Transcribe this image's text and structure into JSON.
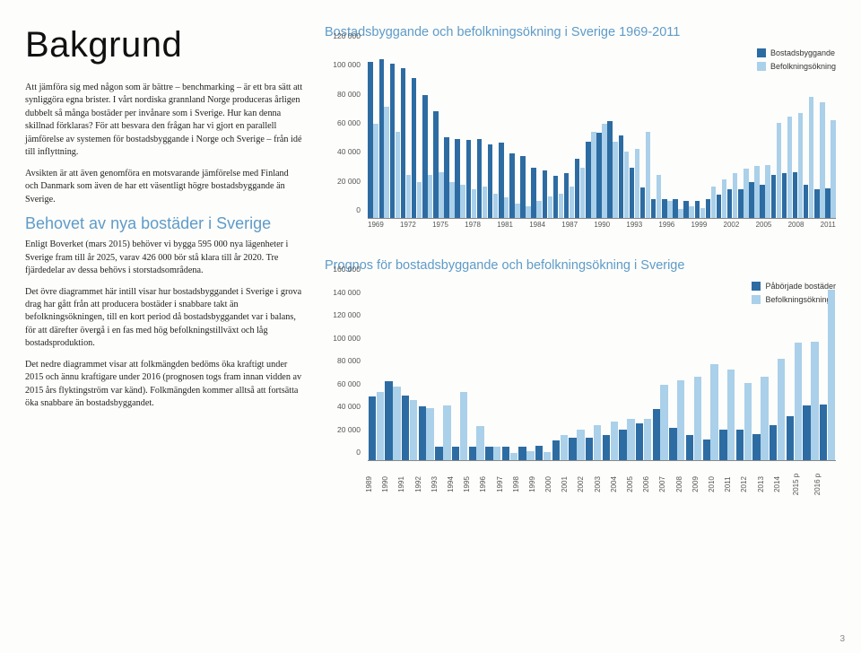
{
  "page_number": "3",
  "left": {
    "title": "Bakgrund",
    "p1": "Att jämföra sig med någon som är bättre – benchmarking – är ett bra sätt att synliggöra egna brister. I vårt nordiska grannland Norge produceras årligen dubbelt så många bostäder per invånare som i Sverige. Hur kan denna skillnad förklaras? För att besvara den frågan har vi gjort en parallell jämförelse av systemen för bostadsbyggande i Norge och Sverige – från idé till inflyttning.",
    "p2": "Avsikten är att även genomföra en motsvarande jämförelse med Finland och Danmark som även de har ett väsentligt högre bostadsbyggande än Sverige.",
    "subhead": "Behovet av nya bostäder i Sverige",
    "p3": "Enligt Boverket (mars 2015) behöver vi bygga 595 000 nya lägenheter i Sverige fram till år 2025, varav 426 000 bör stå klara till år 2020. Tre fjärdedelar av dessa behövs i storstadsområdena.",
    "p4": "Det övre diagrammet här intill visar hur bostadsbyggandet i Sverige i grova drag har gått från att producera bostäder i snabbare takt än befolkningsökningen, till en kort period då bostadsbyggandet var i balans, för att därefter övergå i en fas med hög befolkningstillväxt och låg bostadsproduktion.",
    "p5": "Det nedre diagrammet visar att folkmängden bedöms öka kraftigt under 2015 och ännu kraftigare under 2016 (prognosen togs fram innan vidden av 2015 års flyktingström var känd). Folkmängden kommer alltså att fortsätta öka snabbare än bostadsbyggandet."
  },
  "chart1": {
    "type": "grouped-bar",
    "title": "Bostadsbyggande och befolkningsökning i Sverige 1969-2011",
    "series_a_label": "Bostadsbyggande",
    "series_b_label": "Befolkningsökning",
    "series_a_color": "#2d6ca2",
    "series_b_color": "#aad0ea",
    "ylim": [
      0,
      120000
    ],
    "yticks": [
      0,
      20000,
      40000,
      60000,
      80000,
      100000,
      120000
    ],
    "ytick_labels": [
      "0",
      "20 000",
      "40 000",
      "60 000",
      "80 000",
      "100 000",
      "120 000"
    ],
    "x_label_years": [
      "1969",
      "1972",
      "1975",
      "1978",
      "1981",
      "1984",
      "1987",
      "1990",
      "1993",
      "1996",
      "1999",
      "2002",
      "2005",
      "2008",
      "2011"
    ],
    "bars": [
      {
        "y": 1969,
        "a": 108000,
        "b": 65000
      },
      {
        "y": 1970,
        "a": 110000,
        "b": 77000
      },
      {
        "y": 1971,
        "a": 107000,
        "b": 60000
      },
      {
        "y": 1972,
        "a": 104000,
        "b": 30000
      },
      {
        "y": 1973,
        "a": 97000,
        "b": 25000
      },
      {
        "y": 1974,
        "a": 85000,
        "b": 30000
      },
      {
        "y": 1975,
        "a": 74000,
        "b": 32000
      },
      {
        "y": 1976,
        "a": 56000,
        "b": 25000
      },
      {
        "y": 1977,
        "a": 55000,
        "b": 23000
      },
      {
        "y": 1978,
        "a": 54000,
        "b": 20000
      },
      {
        "y": 1979,
        "a": 55000,
        "b": 22000
      },
      {
        "y": 1980,
        "a": 51000,
        "b": 17000
      },
      {
        "y": 1981,
        "a": 52000,
        "b": 14000
      },
      {
        "y": 1982,
        "a": 45000,
        "b": 10000
      },
      {
        "y": 1983,
        "a": 43000,
        "b": 8000
      },
      {
        "y": 1984,
        "a": 35000,
        "b": 12000
      },
      {
        "y": 1985,
        "a": 33000,
        "b": 15000
      },
      {
        "y": 1986,
        "a": 29000,
        "b": 17000
      },
      {
        "y": 1987,
        "a": 31000,
        "b": 22000
      },
      {
        "y": 1988,
        "a": 41000,
        "b": 35000
      },
      {
        "y": 1989,
        "a": 53000,
        "b": 60000
      },
      {
        "y": 1990,
        "a": 59000,
        "b": 65000
      },
      {
        "y": 1991,
        "a": 67000,
        "b": 53000
      },
      {
        "y": 1992,
        "a": 57000,
        "b": 46000
      },
      {
        "y": 1993,
        "a": 35000,
        "b": 48000
      },
      {
        "y": 1994,
        "a": 21000,
        "b": 60000
      },
      {
        "y": 1995,
        "a": 13000,
        "b": 30000
      },
      {
        "y": 1996,
        "a": 13000,
        "b": 12000
      },
      {
        "y": 1997,
        "a": 13000,
        "b": 6000
      },
      {
        "y": 1998,
        "a": 12000,
        "b": 8000
      },
      {
        "y": 1999,
        "a": 12000,
        "b": 7000
      },
      {
        "y": 2000,
        "a": 13000,
        "b": 22000
      },
      {
        "y": 2001,
        "a": 16000,
        "b": 27000
      },
      {
        "y": 2002,
        "a": 20000,
        "b": 31000
      },
      {
        "y": 2003,
        "a": 20000,
        "b": 34000
      },
      {
        "y": 2004,
        "a": 25000,
        "b": 36000
      },
      {
        "y": 2005,
        "a": 23000,
        "b": 36500
      },
      {
        "y": 2006,
        "a": 30000,
        "b": 66000
      },
      {
        "y": 2007,
        "a": 31000,
        "b": 70000
      },
      {
        "y": 2008,
        "a": 32000,
        "b": 73000
      },
      {
        "y": 2009,
        "a": 23000,
        "b": 84000
      },
      {
        "y": 2010,
        "a": 20000,
        "b": 80000
      },
      {
        "y": 2011,
        "a": 20500,
        "b": 68000
      }
    ],
    "background_color": "#ffffff",
    "axis_color": "#888888",
    "axis_fontsize": 8.5
  },
  "chart2": {
    "type": "grouped-bar",
    "title": "Prognos för bostadsbyggande och befolkningsökning i Sverige",
    "series_a_label": "Påbörjade bostäder",
    "series_b_label": "Befolkningsökning",
    "series_a_color": "#2d6ca2",
    "series_b_color": "#aad0ea",
    "ylim": [
      0,
      160000
    ],
    "yticks": [
      0,
      20000,
      40000,
      60000,
      80000,
      100000,
      120000,
      140000,
      160000
    ],
    "ytick_labels": [
      "0",
      "20 000",
      "40 000",
      "60 000",
      "80 000",
      "100 000",
      "120 000",
      "140 000",
      "160 000"
    ],
    "x_labels": [
      "1989",
      "1990",
      "1991",
      "1992",
      "1993",
      "1994",
      "1995",
      "1996",
      "1997",
      "1998",
      "1999",
      "2000",
      "2001",
      "2002",
      "2003",
      "2004",
      "2005",
      "2006",
      "2007",
      "2008",
      "2009",
      "2010",
      "2011",
      "2012",
      "2013",
      "2014",
      "2015 p",
      "2016 p"
    ],
    "bars": [
      {
        "y": "1989",
        "a": 56000,
        "b": 60000
      },
      {
        "y": "1990",
        "a": 69000,
        "b": 65000
      },
      {
        "y": "1991",
        "a": 57000,
        "b": 53000
      },
      {
        "y": "1992",
        "a": 47000,
        "b": 46000
      },
      {
        "y": "1993",
        "a": 12000,
        "b": 48000
      },
      {
        "y": "1994",
        "a": 12000,
        "b": 60000
      },
      {
        "y": "1995",
        "a": 12000,
        "b": 30000
      },
      {
        "y": "1996",
        "a": 12000,
        "b": 12000
      },
      {
        "y": "1997",
        "a": 12000,
        "b": 6000
      },
      {
        "y": "1998",
        "a": 12000,
        "b": 8000
      },
      {
        "y": "1999",
        "a": 13000,
        "b": 7000
      },
      {
        "y": "2000",
        "a": 17000,
        "b": 22000
      },
      {
        "y": "2001",
        "a": 20000,
        "b": 27000
      },
      {
        "y": "2002",
        "a": 20000,
        "b": 31000
      },
      {
        "y": "2003",
        "a": 22000,
        "b": 34000
      },
      {
        "y": "2004",
        "a": 27000,
        "b": 36000
      },
      {
        "y": "2005",
        "a": 32000,
        "b": 36500
      },
      {
        "y": "2006",
        "a": 45000,
        "b": 66000
      },
      {
        "y": "2007",
        "a": 28000,
        "b": 70000
      },
      {
        "y": "2008",
        "a": 22000,
        "b": 73000
      },
      {
        "y": "2009",
        "a": 18000,
        "b": 84000
      },
      {
        "y": "2010",
        "a": 27000,
        "b": 80000
      },
      {
        "y": "2011",
        "a": 27000,
        "b": 68000
      },
      {
        "y": "2012",
        "a": 23000,
        "b": 73000
      },
      {
        "y": "2013",
        "a": 31000,
        "b": 89000
      },
      {
        "y": "2014",
        "a": 39000,
        "b": 103000
      },
      {
        "y": "2015 p",
        "a": 48000,
        "b": 104000
      },
      {
        "y": "2016 p",
        "a": 49000,
        "b": 150000
      }
    ],
    "background_color": "#ffffff",
    "axis_color": "#888888",
    "axis_fontsize": 8.5
  }
}
